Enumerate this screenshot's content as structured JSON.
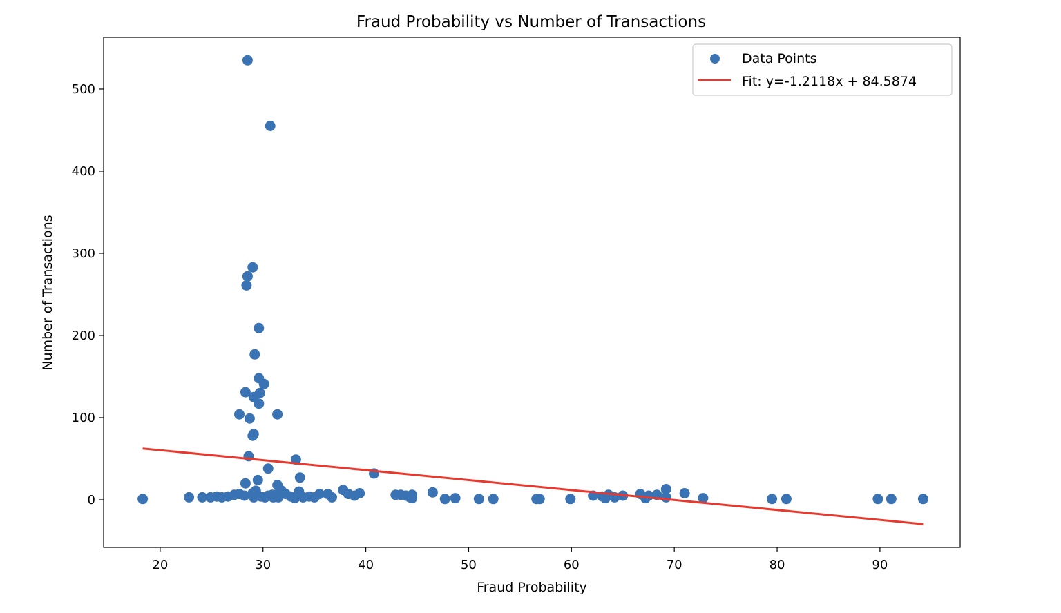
{
  "chart_data": {
    "type": "scatter",
    "title": "Fraud Probability vs Number of Transactions",
    "xlabel": "Fraud Probability",
    "ylabel": "Number of Transactions",
    "xlim": [
      14.5,
      97.8
    ],
    "ylim": [
      -58,
      563
    ],
    "xticks": [
      20,
      30,
      40,
      50,
      60,
      70,
      80,
      90
    ],
    "yticks": [
      0,
      100,
      200,
      300,
      400,
      500
    ],
    "grid": false,
    "legend_position": "top-right",
    "series": [
      {
        "name": "Data Points",
        "kind": "scatter",
        "color": "#3a73b3",
        "points": [
          [
            18.3,
            1
          ],
          [
            22.8,
            3
          ],
          [
            24.1,
            3
          ],
          [
            24.9,
            3
          ],
          [
            25.5,
            4
          ],
          [
            26.0,
            3
          ],
          [
            26.6,
            4
          ],
          [
            27.2,
            6
          ],
          [
            27.7,
            7
          ],
          [
            28.2,
            5
          ],
          [
            28.3,
            20
          ],
          [
            28.5,
            535
          ],
          [
            30.7,
            455
          ],
          [
            29.0,
            283
          ],
          [
            28.5,
            272
          ],
          [
            28.4,
            261
          ],
          [
            29.6,
            209
          ],
          [
            29.2,
            177
          ],
          [
            29.6,
            148
          ],
          [
            30.1,
            141
          ],
          [
            28.3,
            131
          ],
          [
            29.7,
            130
          ],
          [
            29.1,
            125
          ],
          [
            29.6,
            117
          ],
          [
            27.7,
            104
          ],
          [
            31.4,
            104
          ],
          [
            28.7,
            99
          ],
          [
            29.1,
            80
          ],
          [
            29.0,
            78
          ],
          [
            28.6,
            53
          ],
          [
            33.2,
            49
          ],
          [
            30.5,
            38
          ],
          [
            33.6,
            27
          ],
          [
            29.5,
            24
          ],
          [
            31.4,
            18
          ],
          [
            31.8,
            11
          ],
          [
            29.3,
            11
          ],
          [
            29.0,
            8
          ],
          [
            30.5,
            5
          ],
          [
            30.9,
            6
          ],
          [
            31.2,
            6
          ],
          [
            29.1,
            3
          ],
          [
            29.8,
            4
          ],
          [
            30.2,
            3
          ],
          [
            31.0,
            3
          ],
          [
            31.5,
            3
          ],
          [
            32.2,
            7
          ],
          [
            32.7,
            4
          ],
          [
            33.1,
            2
          ],
          [
            33.5,
            10
          ],
          [
            33.9,
            3
          ],
          [
            34.5,
            4
          ],
          [
            35.0,
            3
          ],
          [
            35.5,
            7
          ],
          [
            36.3,
            7
          ],
          [
            36.7,
            3
          ],
          [
            37.8,
            12
          ],
          [
            38.3,
            7
          ],
          [
            38.9,
            5
          ],
          [
            39.4,
            8
          ],
          [
            40.8,
            32
          ],
          [
            42.9,
            6
          ],
          [
            43.4,
            6
          ],
          [
            43.9,
            5
          ],
          [
            44.3,
            3
          ],
          [
            44.5,
            6
          ],
          [
            44.5,
            2
          ],
          [
            46.5,
            9
          ],
          [
            47.7,
            1
          ],
          [
            48.7,
            2
          ],
          [
            51.0,
            1
          ],
          [
            52.4,
            1
          ],
          [
            56.6,
            1
          ],
          [
            56.9,
            1
          ],
          [
            59.9,
            1
          ],
          [
            62.1,
            5
          ],
          [
            63.0,
            4
          ],
          [
            63.3,
            2
          ],
          [
            63.6,
            6
          ],
          [
            64.2,
            3
          ],
          [
            65.0,
            5
          ],
          [
            66.7,
            7
          ],
          [
            67.2,
            2
          ],
          [
            67.5,
            5
          ],
          [
            68.3,
            6
          ],
          [
            69.2,
            13
          ],
          [
            69.2,
            3
          ],
          [
            71.0,
            8
          ],
          [
            72.8,
            2
          ],
          [
            79.5,
            1
          ],
          [
            80.9,
            1
          ],
          [
            89.8,
            1
          ],
          [
            91.1,
            1
          ],
          [
            94.2,
            1
          ]
        ]
      },
      {
        "name": "Fit: y=-1.2118x + 84.5874",
        "kind": "line",
        "color": "#e8392e",
        "points": [
          [
            18.3,
            62.4
          ],
          [
            94.2,
            -29.6
          ]
        ]
      }
    ]
  }
}
